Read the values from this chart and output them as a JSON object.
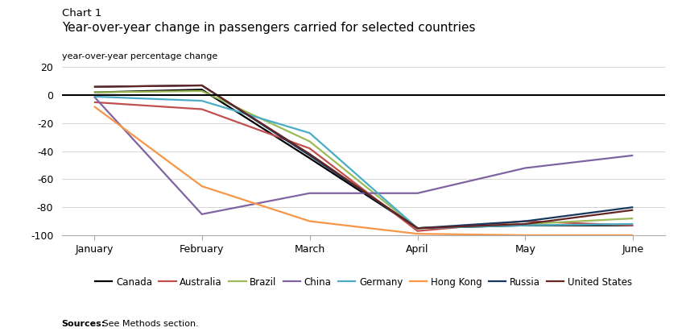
{
  "chart_label": "Chart 1",
  "title": "Year-over-year change in passengers carried for selected countries",
  "ylabel": "year-over-year percentage change",
  "sources_bold": "Sources:",
  "sources_normal": " See Methods section.",
  "months": [
    "January",
    "February",
    "March",
    "April",
    "May",
    "June"
  ],
  "x_positions": [
    0,
    1,
    2,
    3,
    4,
    5
  ],
  "series": {
    "Canada": [
      2,
      4,
      -45,
      -95,
      -93,
      -93
    ],
    "Australia": [
      -5,
      -10,
      -38,
      -97,
      -90,
      -93
    ],
    "Brazil": [
      2,
      3,
      -33,
      -95,
      -92,
      -88
    ],
    "China": [
      -1,
      -85,
      -70,
      -70,
      -52,
      -43
    ],
    "Germany": [
      -1,
      -4,
      -27,
      -95,
      -93,
      -92
    ],
    "Hong Kong": [
      -8,
      -65,
      -90,
      -99,
      -100,
      -100
    ],
    "Russia": [
      6,
      7,
      -43,
      -95,
      -90,
      -80
    ],
    "United States": [
      6,
      7,
      -42,
      -95,
      -92,
      -82
    ]
  },
  "colors": {
    "Canada": "#000000",
    "Australia": "#c0504d",
    "Brazil": "#9bbb59",
    "China": "#8064a2",
    "Germany": "#4bacc6",
    "Hong Kong": "#f79646",
    "Russia": "#17375e",
    "United States": "#632523"
  },
  "ylim": [
    -100,
    20
  ],
  "yticks": [
    -100,
    -80,
    -60,
    -40,
    -20,
    0,
    20
  ],
  "figsize": [
    8.52,
    4.17
  ],
  "dpi": 100,
  "bg_color": "#ffffff",
  "legend_order": [
    "Canada",
    "Australia",
    "Brazil",
    "China",
    "Germany",
    "Hong Kong",
    "Russia",
    "United States"
  ]
}
